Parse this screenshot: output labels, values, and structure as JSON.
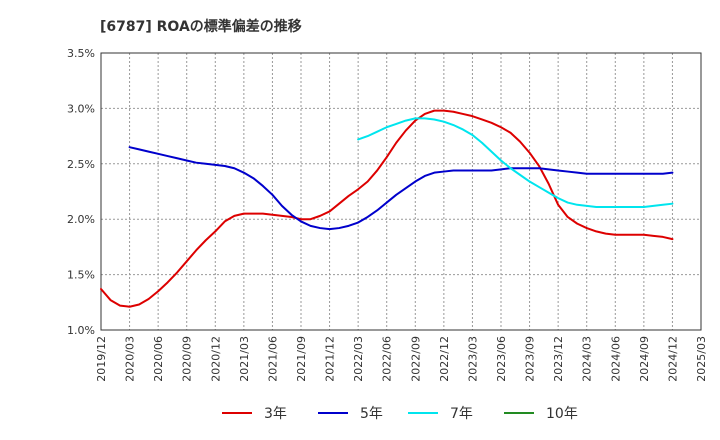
{
  "chart_data": {
    "type": "line",
    "title": "[6787]  ROAの標準偏差の推移",
    "xlabel": "",
    "ylabel": "",
    "ylim": [
      1.0,
      3.5
    ],
    "y_ticks": [
      "1.0%",
      "1.5%",
      "2.0%",
      "2.5%",
      "3.0%",
      "3.5%"
    ],
    "x_ticks": [
      "2019/12",
      "2020/03",
      "2020/06",
      "2020/09",
      "2020/12",
      "2021/03",
      "2021/06",
      "2021/09",
      "2021/12",
      "2022/03",
      "2022/06",
      "2022/09",
      "2022/12",
      "2023/03",
      "2023/06",
      "2023/09",
      "2023/12",
      "2024/03",
      "2024/06",
      "2024/09",
      "2024/12",
      "2025/03"
    ],
    "grid": true,
    "legend_position": "bottom",
    "series": [
      {
        "name": "3年",
        "color": "#dd0000",
        "points": [
          [
            "2019/12",
            1.37
          ],
          [
            "2020/01",
            1.27
          ],
          [
            "2020/02",
            1.22
          ],
          [
            "2020/03",
            1.21
          ],
          [
            "2020/04",
            1.23
          ],
          [
            "2020/05",
            1.28
          ],
          [
            "2020/06",
            1.35
          ],
          [
            "2020/07",
            1.43
          ],
          [
            "2020/08",
            1.52
          ],
          [
            "2020/09",
            1.62
          ],
          [
            "2020/10",
            1.72
          ],
          [
            "2020/11",
            1.81
          ],
          [
            "2020/12",
            1.89
          ],
          [
            "2021/01",
            1.98
          ],
          [
            "2021/02",
            2.03
          ],
          [
            "2021/03",
            2.05
          ],
          [
            "2021/04",
            2.05
          ],
          [
            "2021/05",
            2.05
          ],
          [
            "2021/06",
            2.04
          ],
          [
            "2021/07",
            2.03
          ],
          [
            "2021/08",
            2.02
          ],
          [
            "2021/09",
            2.0
          ],
          [
            "2021/10",
            2.0
          ],
          [
            "2021/11",
            2.03
          ],
          [
            "2021/12",
            2.07
          ],
          [
            "2022/01",
            2.14
          ],
          [
            "2022/02",
            2.21
          ],
          [
            "2022/03",
            2.27
          ],
          [
            "2022/04",
            2.34
          ],
          [
            "2022/05",
            2.44
          ],
          [
            "2022/06",
            2.56
          ],
          [
            "2022/07",
            2.69
          ],
          [
            "2022/08",
            2.8
          ],
          [
            "2022/09",
            2.89
          ],
          [
            "2022/10",
            2.95
          ],
          [
            "2022/11",
            2.98
          ],
          [
            "2022/12",
            2.98
          ],
          [
            "2023/01",
            2.97
          ],
          [
            "2023/02",
            2.95
          ],
          [
            "2023/03",
            2.93
          ],
          [
            "2023/04",
            2.9
          ],
          [
            "2023/05",
            2.87
          ],
          [
            "2023/06",
            2.83
          ],
          [
            "2023/07",
            2.78
          ],
          [
            "2023/08",
            2.7
          ],
          [
            "2023/09",
            2.6
          ],
          [
            "2023/10",
            2.48
          ],
          [
            "2023/11",
            2.32
          ],
          [
            "2023/12",
            2.13
          ],
          [
            "2024/01",
            2.02
          ],
          [
            "2024/02",
            1.96
          ],
          [
            "2024/03",
            1.92
          ],
          [
            "2024/04",
            1.89
          ],
          [
            "2024/05",
            1.87
          ],
          [
            "2024/06",
            1.86
          ],
          [
            "2024/07",
            1.86
          ],
          [
            "2024/08",
            1.86
          ],
          [
            "2024/09",
            1.86
          ],
          [
            "2024/10",
            1.85
          ],
          [
            "2024/11",
            1.84
          ],
          [
            "2024/12",
            1.82
          ]
        ]
      },
      {
        "name": "5年",
        "color": "#0000cc",
        "points": [
          [
            "2020/03",
            2.65
          ],
          [
            "2020/04",
            2.63
          ],
          [
            "2020/05",
            2.61
          ],
          [
            "2020/06",
            2.59
          ],
          [
            "2020/07",
            2.57
          ],
          [
            "2020/08",
            2.55
          ],
          [
            "2020/09",
            2.53
          ],
          [
            "2020/10",
            2.51
          ],
          [
            "2020/11",
            2.5
          ],
          [
            "2020/12",
            2.49
          ],
          [
            "2021/01",
            2.48
          ],
          [
            "2021/02",
            2.46
          ],
          [
            "2021/03",
            2.42
          ],
          [
            "2021/04",
            2.37
          ],
          [
            "2021/05",
            2.3
          ],
          [
            "2021/06",
            2.22
          ],
          [
            "2021/07",
            2.12
          ],
          [
            "2021/08",
            2.04
          ],
          [
            "2021/09",
            1.98
          ],
          [
            "2021/10",
            1.94
          ],
          [
            "2021/11",
            1.92
          ],
          [
            "2021/12",
            1.91
          ],
          [
            "2022/01",
            1.92
          ],
          [
            "2022/02",
            1.94
          ],
          [
            "2022/03",
            1.97
          ],
          [
            "2022/04",
            2.02
          ],
          [
            "2022/05",
            2.08
          ],
          [
            "2022/06",
            2.15
          ],
          [
            "2022/07",
            2.22
          ],
          [
            "2022/08",
            2.28
          ],
          [
            "2022/09",
            2.34
          ],
          [
            "2022/10",
            2.39
          ],
          [
            "2022/11",
            2.42
          ],
          [
            "2022/12",
            2.43
          ],
          [
            "2023/01",
            2.44
          ],
          [
            "2023/02",
            2.44
          ],
          [
            "2023/03",
            2.44
          ],
          [
            "2023/04",
            2.44
          ],
          [
            "2023/05",
            2.44
          ],
          [
            "2023/06",
            2.45
          ],
          [
            "2023/07",
            2.46
          ],
          [
            "2023/08",
            2.46
          ],
          [
            "2023/09",
            2.46
          ],
          [
            "2023/10",
            2.46
          ],
          [
            "2023/11",
            2.45
          ],
          [
            "2023/12",
            2.44
          ],
          [
            "2024/01",
            2.43
          ],
          [
            "2024/02",
            2.42
          ],
          [
            "2024/03",
            2.41
          ],
          [
            "2024/04",
            2.41
          ],
          [
            "2024/05",
            2.41
          ],
          [
            "2024/06",
            2.41
          ],
          [
            "2024/07",
            2.41
          ],
          [
            "2024/08",
            2.41
          ],
          [
            "2024/09",
            2.41
          ],
          [
            "2024/10",
            2.41
          ],
          [
            "2024/11",
            2.41
          ],
          [
            "2024/12",
            2.42
          ]
        ]
      },
      {
        "name": "7年",
        "color": "#00e5ee",
        "points": [
          [
            "2022/03",
            2.72
          ],
          [
            "2022/04",
            2.75
          ],
          [
            "2022/05",
            2.79
          ],
          [
            "2022/06",
            2.83
          ],
          [
            "2022/07",
            2.86
          ],
          [
            "2022/08",
            2.89
          ],
          [
            "2022/09",
            2.91
          ],
          [
            "2022/10",
            2.91
          ],
          [
            "2022/11",
            2.9
          ],
          [
            "2022/12",
            2.88
          ],
          [
            "2023/01",
            2.85
          ],
          [
            "2023/02",
            2.81
          ],
          [
            "2023/03",
            2.76
          ],
          [
            "2023/04",
            2.69
          ],
          [
            "2023/05",
            2.61
          ],
          [
            "2023/06",
            2.53
          ],
          [
            "2023/07",
            2.46
          ],
          [
            "2023/08",
            2.4
          ],
          [
            "2023/09",
            2.34
          ],
          [
            "2023/10",
            2.29
          ],
          [
            "2023/11",
            2.24
          ],
          [
            "2023/12",
            2.19
          ],
          [
            "2024/01",
            2.15
          ],
          [
            "2024/02",
            2.13
          ],
          [
            "2024/03",
            2.12
          ],
          [
            "2024/04",
            2.11
          ],
          [
            "2024/05",
            2.11
          ],
          [
            "2024/06",
            2.11
          ],
          [
            "2024/07",
            2.11
          ],
          [
            "2024/08",
            2.11
          ],
          [
            "2024/09",
            2.11
          ],
          [
            "2024/10",
            2.12
          ],
          [
            "2024/11",
            2.13
          ],
          [
            "2024/12",
            2.14
          ]
        ]
      },
      {
        "name": "10年",
        "color": "#228b22",
        "points": []
      }
    ]
  }
}
